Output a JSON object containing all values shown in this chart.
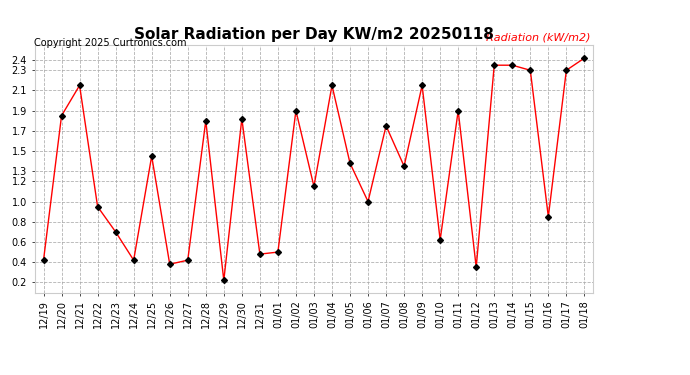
{
  "title": "Solar Radiation per Day KW/m2 20250118",
  "copyright": "Copyright 2025 Curtronics.com",
  "legend_label": "Radiation (kW/m2)",
  "dates": [
    "12/19",
    "12/20",
    "12/21",
    "12/22",
    "12/23",
    "12/24",
    "12/25",
    "12/26",
    "12/27",
    "12/28",
    "12/29",
    "12/30",
    "12/31",
    "01/01",
    "01/02",
    "01/03",
    "01/04",
    "01/05",
    "01/06",
    "01/07",
    "01/08",
    "01/09",
    "01/10",
    "01/11",
    "01/12",
    "01/13",
    "01/14",
    "01/15",
    "01/16",
    "01/17",
    "01/18"
  ],
  "values": [
    0.42,
    1.85,
    2.15,
    0.95,
    0.7,
    0.42,
    1.45,
    0.38,
    0.42,
    1.8,
    0.22,
    1.82,
    0.48,
    0.5,
    1.9,
    1.15,
    2.15,
    1.38,
    1.0,
    1.75,
    1.35,
    2.15,
    0.62,
    1.9,
    0.35,
    2.35,
    2.35,
    2.3,
    0.85,
    2.3,
    2.42
  ],
  "line_color": "red",
  "marker_color": "black",
  "marker": "D",
  "marker_size": 3,
  "ylim": [
    0.1,
    2.55
  ],
  "yticks": [
    0.2,
    0.4,
    0.6,
    0.8,
    1.0,
    1.2,
    1.3,
    1.5,
    1.7,
    1.9,
    2.1,
    2.3,
    2.4
  ],
  "background_color": "#ffffff",
  "grid_color": "#aaaaaa",
  "title_fontsize": 11,
  "axis_fontsize": 7,
  "legend_fontsize": 8,
  "copyright_fontsize": 7
}
